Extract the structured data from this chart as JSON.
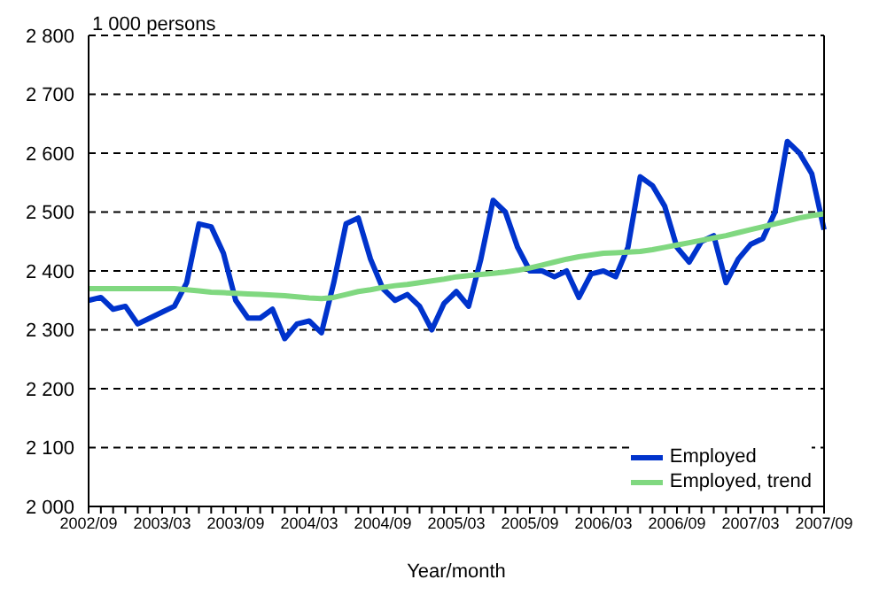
{
  "chart_data": {
    "type": "line",
    "ylabel": "1 000 persons",
    "xlabel": "Year/month",
    "categories": [
      "2002/09",
      null,
      null,
      null,
      null,
      null,
      "2003/03",
      null,
      null,
      null,
      null,
      null,
      "2003/09",
      null,
      null,
      null,
      null,
      null,
      "2004/03",
      null,
      null,
      null,
      null,
      null,
      "2004/09",
      null,
      null,
      null,
      null,
      null,
      "2005/03",
      null,
      null,
      null,
      null,
      null,
      "2005/09",
      null,
      null,
      null,
      null,
      null,
      "2006/03",
      null,
      null,
      null,
      null,
      null,
      "2006/09",
      null,
      null,
      null,
      null,
      null,
      "2007/03",
      null,
      null,
      null,
      null,
      null,
      "2007/09"
    ],
    "series": [
      {
        "name": "Employed",
        "color": "#0033cc",
        "values": [
          2350,
          2355,
          2335,
          2340,
          2310,
          2320,
          2330,
          2340,
          2380,
          2480,
          2475,
          2430,
          2350,
          2320,
          2320,
          2335,
          2285,
          2310,
          2315,
          2295,
          2380,
          2480,
          2490,
          2420,
          2370,
          2350,
          2360,
          2340,
          2300,
          2345,
          2365,
          2340,
          2420,
          2520,
          2500,
          2440,
          2400,
          2400,
          2390,
          2400,
          2355,
          2395,
          2400,
          2390,
          2440,
          2560,
          2545,
          2510,
          2440,
          2415,
          2450,
          2460,
          2380,
          2420,
          2445,
          2455,
          2500,
          2620,
          2600,
          2565,
          2470
        ]
      },
      {
        "name": "Employed, trend",
        "color": "#80d880",
        "values": [
          2370,
          2370,
          2370,
          2370,
          2370,
          2370,
          2370,
          2370,
          2368,
          2366,
          2364,
          2363,
          2362,
          2361,
          2360,
          2359,
          2358,
          2356,
          2354,
          2353,
          2355,
          2360,
          2365,
          2368,
          2372,
          2375,
          2377,
          2380,
          2383,
          2386,
          2390,
          2392,
          2394,
          2396,
          2398,
          2401,
          2405,
          2410,
          2415,
          2420,
          2424,
          2427,
          2430,
          2431,
          2432,
          2433,
          2436,
          2440,
          2444,
          2448,
          2452,
          2456,
          2460,
          2465,
          2470,
          2475,
          2480,
          2485,
          2490,
          2494,
          2497
        ]
      }
    ],
    "ylim": [
      2000,
      2800
    ],
    "yticks": [
      {
        "value": 2000,
        "label": "2 000"
      },
      {
        "value": 2100,
        "label": "2 100"
      },
      {
        "value": 2200,
        "label": "2 200"
      },
      {
        "value": 2300,
        "label": "2 300"
      },
      {
        "value": 2400,
        "label": "2 400"
      },
      {
        "value": 2500,
        "label": "2 500"
      },
      {
        "value": 2600,
        "label": "2 600"
      },
      {
        "value": 2700,
        "label": "2 700"
      },
      {
        "value": 2800,
        "label": "2 800"
      }
    ],
    "grid": "y",
    "legend": "bottom right",
    "marker": "none",
    "line_style": "solid"
  }
}
